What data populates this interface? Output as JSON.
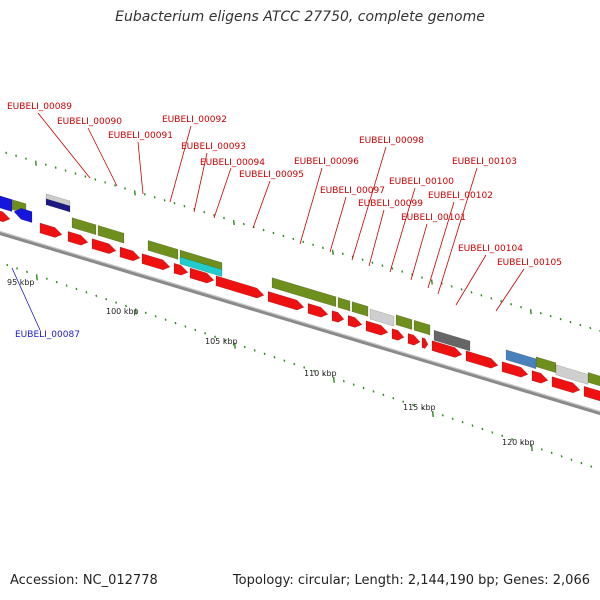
{
  "title": "Eubacterium eligens ATCC 27750, complete genome",
  "footer": {
    "accession": "Accession: NC_012778",
    "summary": "Topology: circular; Length: 2,144,190 bp; Genes: 2,066"
  },
  "colors": {
    "cds_reverse": "#ee1111",
    "cds_forward_green": "#6e8e1e",
    "highlight_blue": "#1515dd",
    "label_red": "#cc0000",
    "label_blue": "#1a1acc",
    "tick_green": "#2a8a1a",
    "backbone": "#8a8a8a"
  },
  "scale_labels": [
    "95 kbp",
    "100 kbp",
    "105 kbp",
    "110 kbp",
    "115 kbp",
    "120 kbp"
  ],
  "gene_labels": [
    "EUBELI_00089",
    "EUBELI_00090",
    "EUBELI_00091",
    "EUBELI_00092",
    "EUBELI_00093",
    "EUBELI_00094",
    "EUBELI_00095",
    "EUBELI_00096",
    "EUBELI_00097",
    "EUBELI_00098",
    "EUBELI_00099",
    "EUBELI_00100",
    "EUBELI_00101",
    "EUBELI_00102",
    "EUBELI_00103",
    "EUBELI_00104",
    "EUBELI_00105"
  ],
  "highlight_label": "EUBELI_00087"
}
